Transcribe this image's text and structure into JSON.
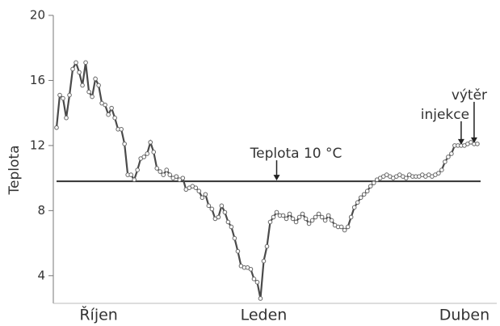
{
  "chart_data": {
    "type": "line",
    "y_label": "Teplota",
    "values": [
      13.1,
      15.1,
      14.9,
      13.7,
      15.1,
      16.7,
      17.1,
      16.5,
      15.7,
      17.1,
      15.3,
      15.0,
      16.1,
      15.7,
      14.6,
      14.5,
      13.9,
      14.3,
      13.7,
      13.0,
      13.0,
      12.1,
      10.2,
      10.2,
      9.9,
      10.5,
      11.2,
      11.3,
      11.5,
      12.2,
      11.6,
      10.6,
      10.4,
      10.2,
      10.5,
      10.2,
      10.0,
      10.1,
      9.9,
      10.0,
      9.3,
      9.4,
      9.5,
      9.4,
      9.2,
      8.8,
      9.0,
      8.3,
      8.1,
      7.5,
      7.6,
      8.3,
      7.9,
      7.3,
      7.0,
      6.3,
      5.5,
      4.6,
      4.5,
      4.5,
      4.4,
      3.8,
      3.6,
      2.6,
      4.9,
      5.8,
      7.3,
      7.6,
      7.9,
      7.7,
      7.7,
      7.5,
      7.8,
      7.5,
      7.3,
      7.6,
      7.8,
      7.5,
      7.2,
      7.4,
      7.6,
      7.8,
      7.6,
      7.4,
      7.7,
      7.4,
      7.1,
      7.0,
      7.0,
      6.8,
      7.0,
      7.6,
      8.2,
      8.5,
      8.8,
      9.0,
      9.2,
      9.5,
      9.7,
      9.9,
      10.0,
      10.1,
      10.2,
      10.1,
      10.0,
      10.1,
      10.2,
      10.1,
      10.0,
      10.2,
      10.1,
      10.1,
      10.1,
      10.2,
      10.1,
      10.2,
      10.1,
      10.2,
      10.3,
      10.5,
      11.0,
      11.3,
      11.5,
      12.0,
      12.0,
      12.0,
      12.0,
      12.1,
      12.2,
      12.1,
      12.1
    ],
    "color": "#4a4a4a",
    "xlim": [
      -1,
      136
    ],
    "xticks": [
      {
        "value": 13,
        "label": "Říjen"
      },
      {
        "value": 64,
        "label": "Leden"
      },
      {
        "value": 126,
        "label": "Duben"
      }
    ],
    "ylim": [
      2.3,
      20
    ],
    "yticks": [
      4,
      8,
      12,
      16,
      20
    ],
    "reference_line": 9.8,
    "annotations": [
      {
        "text": "Teplota 10 °C",
        "x": 68
      },
      {
        "text": "injekce",
        "x": 125
      },
      {
        "text": "výtěr",
        "x": 129
      }
    ]
  }
}
